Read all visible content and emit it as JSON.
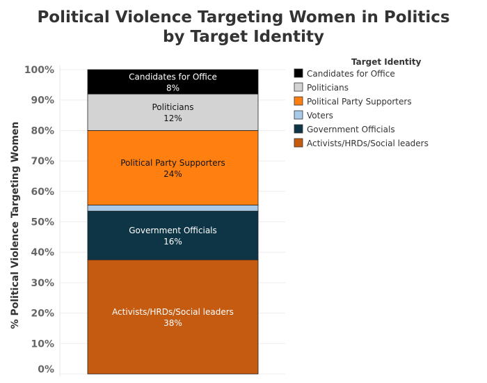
{
  "chart_data": {
    "type": "bar",
    "stacked": true,
    "title": "Political Violence Targeting Women in Politics",
    "subtitle": "by Target Identity",
    "xlabel": "",
    "ylabel": "% Political Violence Targeting Women",
    "ylim": [
      0,
      100
    ],
    "y_ticks": [
      "0%",
      "10%",
      "20%",
      "30%",
      "40%",
      "50%",
      "60%",
      "70%",
      "80%",
      "90%",
      "100%"
    ],
    "grid": true,
    "legend_title": "Target Identity",
    "legend_position": "top-right",
    "series": [
      {
        "name": "Activists/HRDs/Social leaders",
        "value": 37.5,
        "label": "38%",
        "color": "#c55a11",
        "text_color": "#ffffff"
      },
      {
        "name": "Government Officials",
        "value": 16,
        "label": "16%",
        "color": "#0d3545",
        "text_color": "#ffffff"
      },
      {
        "name": "Voters",
        "value": 2,
        "label": "",
        "color": "#a9c9e9",
        "text_color": "#333333"
      },
      {
        "name": "Political Party Supporters",
        "value": 24.5,
        "label": "24%",
        "color": "#ff8010",
        "text_color": "#111111"
      },
      {
        "name": "Politicians",
        "value": 12,
        "label": "12%",
        "color": "#d3d3d3",
        "text_color": "#111111"
      },
      {
        "name": "Candidates for Office",
        "value": 8,
        "label": "8%",
        "color": "#000000",
        "text_color": "#ffffff"
      }
    ],
    "legend_order": [
      "Candidates for Office",
      "Politicians",
      "Political Party Supporters",
      "Voters",
      "Government Officials",
      "Activists/HRDs/Social leaders"
    ]
  }
}
